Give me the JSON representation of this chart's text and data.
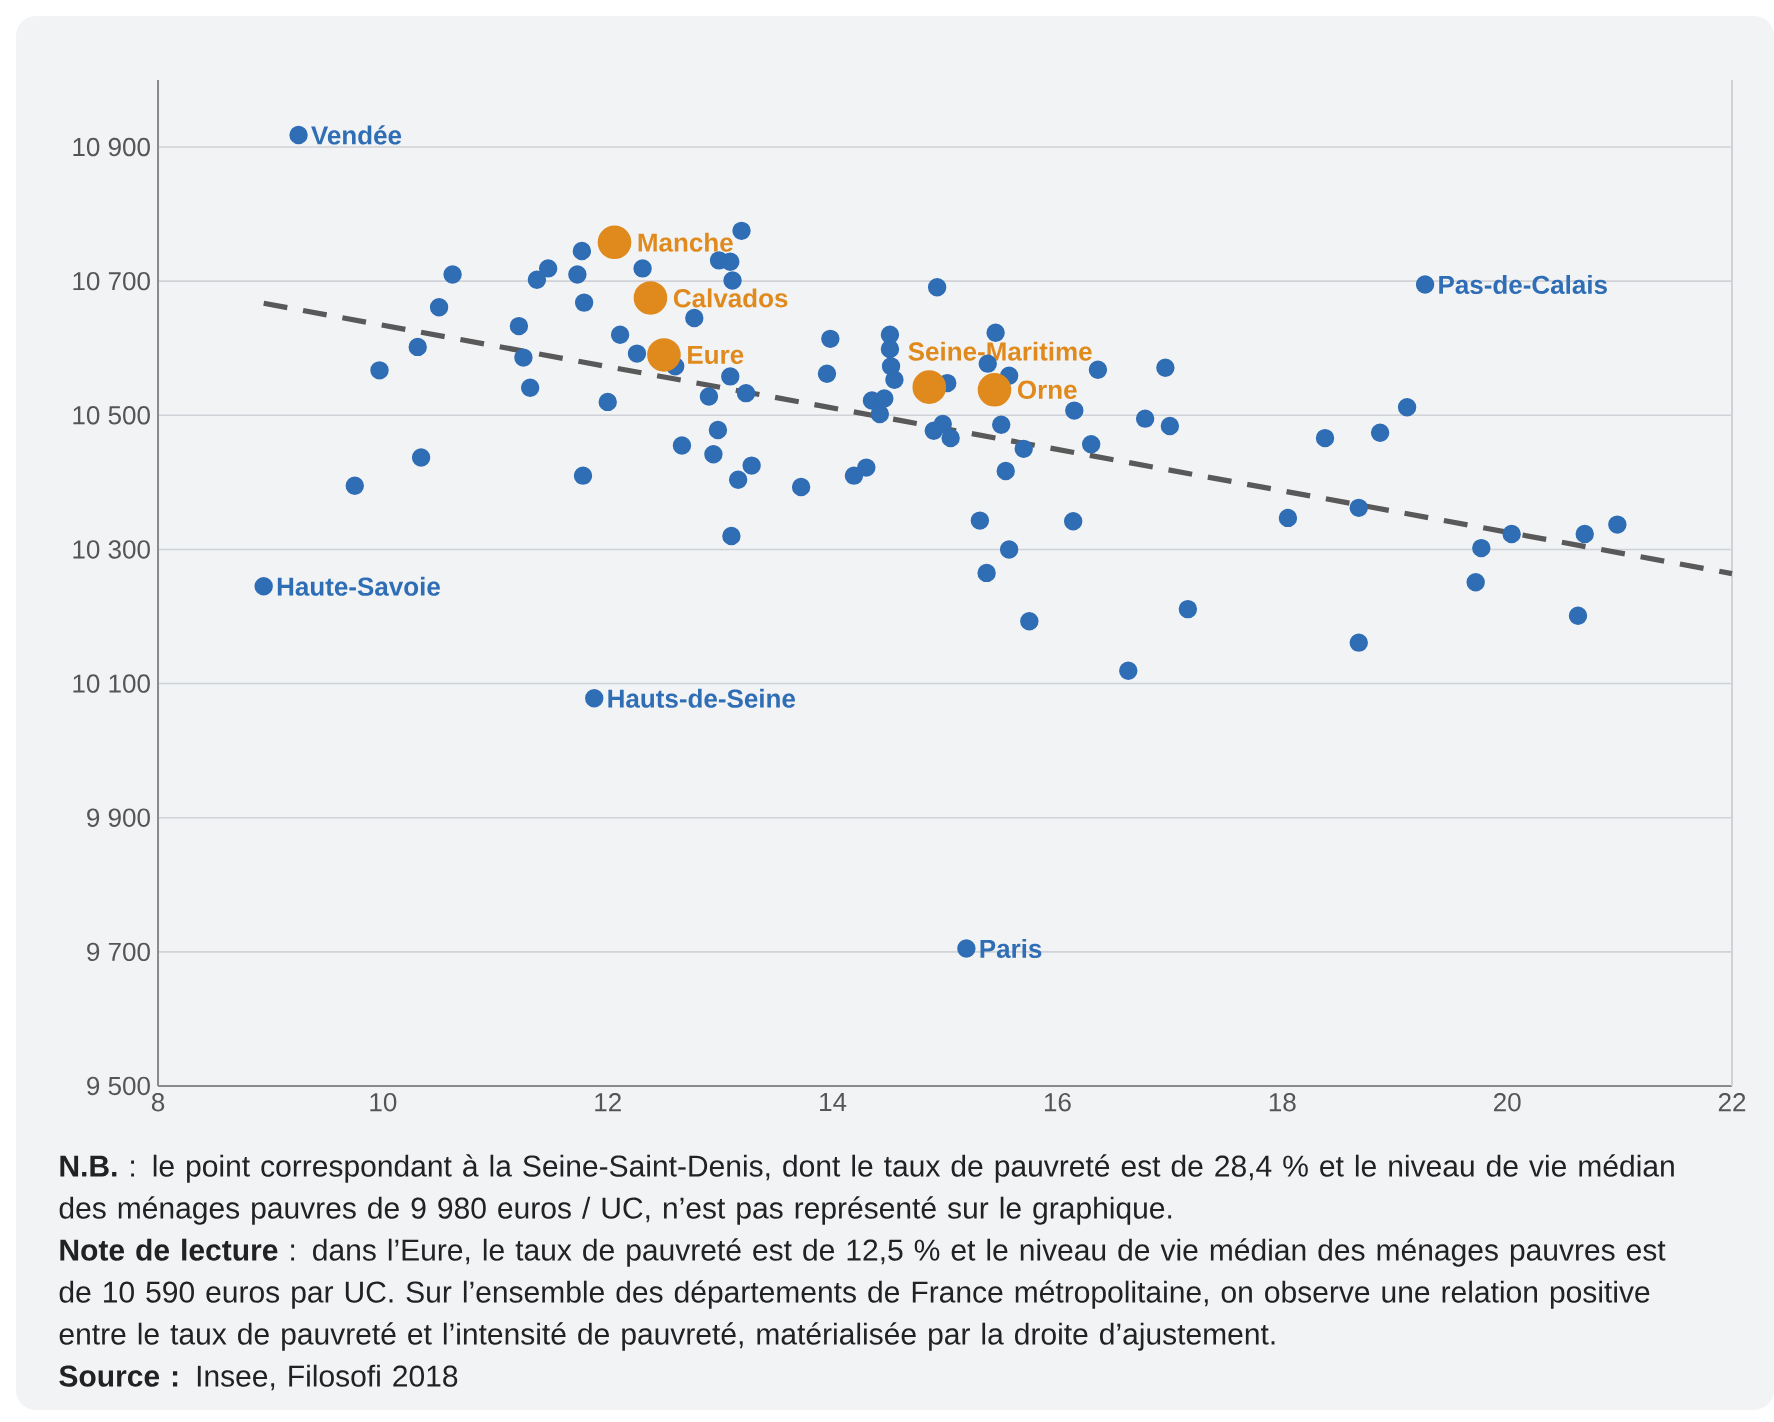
{
  "chart_data": {
    "type": "scatter",
    "xlim": [
      8,
      22
    ],
    "ylim": [
      9500,
      11000
    ],
    "xticks": [
      8,
      10,
      12,
      14,
      16,
      18,
      20,
      22
    ],
    "yticks": [
      {
        "value": 9500,
        "label": "9 500"
      },
      {
        "value": 9700,
        "label": "9 700"
      },
      {
        "value": 9900,
        "label": "9 900"
      },
      {
        "value": 10100,
        "label": "10 100"
      },
      {
        "value": 10300,
        "label": "10 300"
      },
      {
        "value": 10500,
        "label": "10 500"
      },
      {
        "value": 10700,
        "label": "10 700"
      },
      {
        "value": 10900,
        "label": "10 900"
      }
    ],
    "grid": "y",
    "legend": false,
    "series": [
      {
        "color": "#2f6db5",
        "marker": "circle",
        "x": [
          10.62,
          10.5,
          10.31,
          9.97,
          10.34,
          9.75,
          11.47,
          11.37,
          11.77,
          11.73,
          11.79,
          11.21,
          11.25,
          11.31,
          12.0,
          11.78,
          12.31,
          12.11,
          12.26,
          12.6,
          12.77,
          13.19,
          12.99,
          13.09,
          13.11,
          13.09,
          12.9,
          13.23,
          12.98,
          12.66,
          12.94,
          13.28,
          13.16,
          13.1,
          13.72,
          13.98,
          13.95,
          14.19,
          14.3,
          14.35,
          14.46,
          14.42,
          14.51,
          14.51,
          14.52,
          14.55,
          14.93,
          15.02,
          14.9,
          14.98,
          15.05,
          15.45,
          15.38,
          15.57,
          15.5,
          15.7,
          15.54,
          16.15,
          16.36,
          16.3,
          16.78,
          17.0,
          16.96,
          15.31,
          15.57,
          15.37,
          15.75,
          16.14,
          16.63,
          17.16,
          18.38,
          18.87,
          19.11,
          18.05,
          18.68,
          18.68,
          19.77,
          19.72,
          20.04,
          20.69,
          20.98,
          20.63
        ],
        "values": [
          10710,
          10661,
          10602,
          10567,
          10437,
          10395,
          10719,
          10702,
          10745,
          10710,
          10668,
          10633,
          10586,
          10541,
          10520,
          10410,
          10719,
          10620,
          10592,
          10573,
          10645,
          10775,
          10731,
          10729,
          10701,
          10558,
          10528,
          10533,
          10478,
          10455,
          10442,
          10425,
          10404,
          10320,
          10393,
          10614,
          10562,
          10410,
          10422,
          10522,
          10525,
          10502,
          10620,
          10599,
          10573,
          10553,
          10691,
          10548,
          10477,
          10487,
          10466,
          10623,
          10577,
          10559,
          10486,
          10450,
          10417,
          10507,
          10568,
          10457,
          10495,
          10484,
          10571,
          10343,
          10300,
          10265,
          10193,
          10342,
          10119,
          10211,
          10466,
          10474,
          10512,
          10347,
          10362,
          10161,
          10302,
          10251,
          10323,
          10323,
          10337,
          10201
        ]
      },
      {
        "name": "Vendée",
        "color": "#2f6db5",
        "x": [
          9.25
        ],
        "values": [
          10918
        ]
      },
      {
        "name": "Haute-Savoie",
        "color": "#2f6db5",
        "x": [
          8.94
        ],
        "values": [
          10245
        ]
      },
      {
        "name": "Hauts-de-Seine",
        "color": "#2f6db5",
        "x": [
          11.88
        ],
        "values": [
          10078
        ]
      },
      {
        "name": "Paris",
        "color": "#2f6db5",
        "x": [
          15.19
        ],
        "values": [
          9705
        ]
      },
      {
        "name": "Pas-de-Calais",
        "color": "#2f6db5",
        "x": [
          19.27
        ],
        "values": [
          10695
        ]
      },
      {
        "name": "Manche",
        "type": "bubble",
        "color": "#e08a1e",
        "x": [
          12.06
        ],
        "values": [
          10758
        ],
        "sizes": [
          1
        ]
      },
      {
        "name": "Calvados",
        "type": "bubble",
        "color": "#e08a1e",
        "x": [
          12.38
        ],
        "values": [
          10675
        ],
        "sizes": [
          1
        ]
      },
      {
        "name": "Eure",
        "type": "bubble",
        "color": "#e08a1e",
        "x": [
          12.5
        ],
        "values": [
          10590
        ],
        "sizes": [
          1
        ]
      },
      {
        "name": "Seine-Maritime",
        "type": "bubble",
        "color": "#e08a1e",
        "x": [
          14.86
        ],
        "values": [
          10542
        ],
        "sizes": [
          1
        ]
      },
      {
        "name": "Orne",
        "type": "bubble",
        "color": "#e08a1e",
        "x": [
          15.44
        ],
        "values": [
          10538
        ],
        "sizes": [
          1
        ]
      },
      {
        "type": "line",
        "color": "#595959",
        "line_style": "dashed",
        "marker": "none",
        "x": [
          8.94,
          22
        ],
        "values": [
          10667,
          10264
        ]
      }
    ],
    "annotations": [
      "**N.B.** : le point correspondant à la Seine-Saint-Denis, dont le taux de pauvreté est de 28,4 % et le niveau de vie médian des ménages pauvres de 9 980 euros / UC, n’est pas représenté sur le graphique.",
      "**Note de lecture** : dans l’Eure, le taux de pauvreté est de 12,5 % et le niveau de vie médian des ménages pauvres est de 10 590 euros par UC. Sur l’ensemble des départements de France métropolitaine, on observe une relation positive entre le taux de pauvreté et l’intensité de pauvreté, matérialisée par la droite d’ajustement.",
      "**Source :** Insee, Filosofi 2018"
    ]
  }
}
